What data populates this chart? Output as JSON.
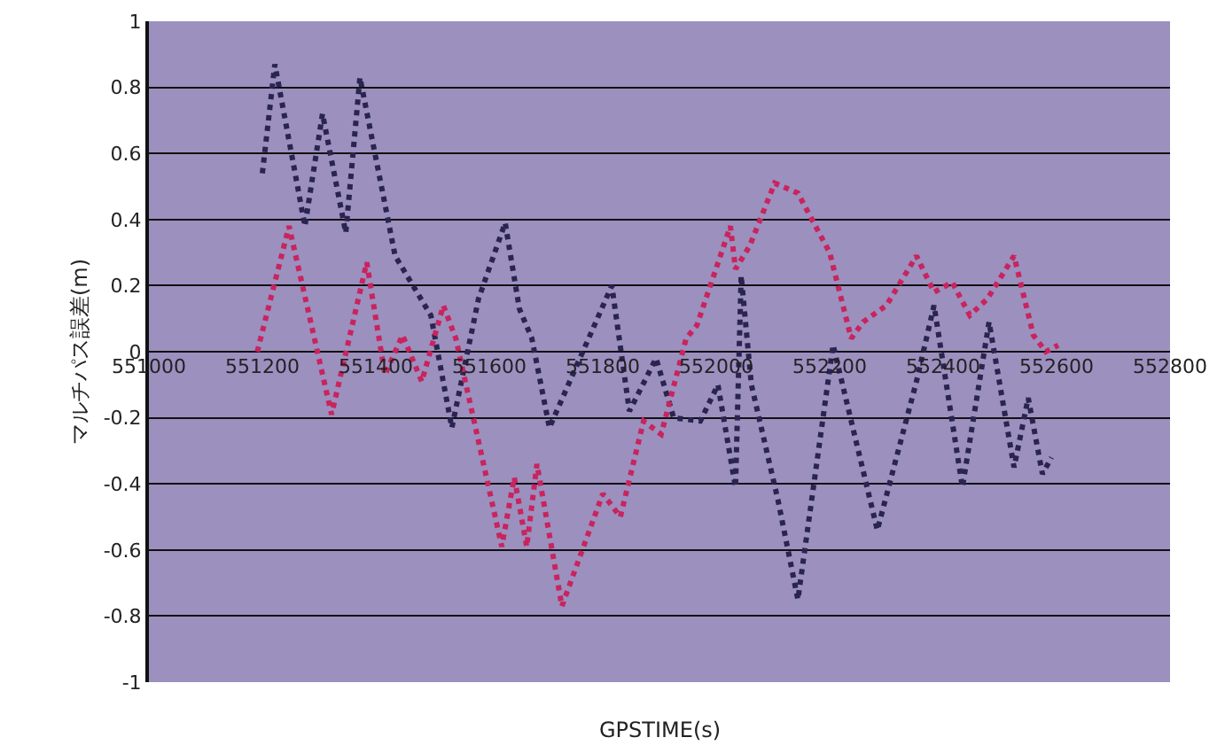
{
  "chart_data": {
    "type": "line",
    "xlabel": "GPSTIME(s)",
    "ylabel": "マルチパス誤差(m)",
    "xlim": [
      551000,
      552800
    ],
    "xticks": [
      551000,
      551200,
      551400,
      551600,
      551800,
      552000,
      552200,
      552400,
      552600,
      552800
    ],
    "ylim": [
      -1,
      1
    ],
    "yticks": [
      -1,
      -0.8,
      -0.6,
      -0.4,
      -0.2,
      0,
      0.2,
      0.4,
      0.6,
      0.8,
      1
    ],
    "grid": "y",
    "marker": "none",
    "line_style": "dotted",
    "series": [
      {
        "color": "#2a2450",
        "x": [
          551200,
          551222,
          551275,
          551306,
          551347,
          551372,
          551434,
          551497,
          551534,
          551581,
          551628,
          551653,
          551675,
          551706,
          551816,
          551847,
          551894,
          551925,
          551972,
          552003,
          552034,
          552044,
          552062,
          552109,
          552144,
          552206,
          552284,
          552353,
          552384,
          552434,
          552481,
          552525,
          552550,
          552575,
          552591
        ],
        "values": [
          0.54,
          0.87,
          0.38,
          0.72,
          0.36,
          0.83,
          0.29,
          0.11,
          -0.23,
          0.16,
          0.39,
          0.13,
          0.04,
          -0.23,
          0.2,
          -0.18,
          -0.02,
          -0.2,
          -0.21,
          -0.1,
          -0.41,
          0.23,
          -0.1,
          -0.45,
          -0.75,
          0.02,
          -0.54,
          -0.09,
          0.14,
          -0.41,
          0.09,
          -0.35,
          -0.14,
          -0.37,
          -0.32
        ]
      },
      {
        "color": "#c8245e",
        "x": [
          551191,
          551247,
          551322,
          551384,
          551416,
          551447,
          551481,
          551519,
          551541,
          551622,
          551644,
          551666,
          551684,
          551728,
          551800,
          551831,
          551872,
          551903,
          551947,
          551966,
          552025,
          552034,
          552059,
          552103,
          552144,
          552175,
          552200,
          552238,
          552259,
          552300,
          552353,
          552384,
          552416,
          552447,
          552478,
          552525,
          552559,
          552581,
          552603
        ],
        "values": [
          0.0,
          0.38,
          -0.19,
          0.27,
          -0.07,
          0.05,
          -0.09,
          0.14,
          0.04,
          -0.59,
          -0.38,
          -0.59,
          -0.34,
          -0.77,
          -0.43,
          -0.5,
          -0.21,
          -0.25,
          0.04,
          0.08,
          0.38,
          0.25,
          0.32,
          0.51,
          0.48,
          0.38,
          0.3,
          0.04,
          0.09,
          0.14,
          0.29,
          0.18,
          0.21,
          0.11,
          0.16,
          0.29,
          0.05,
          0.0,
          0.02
        ]
      }
    ]
  }
}
